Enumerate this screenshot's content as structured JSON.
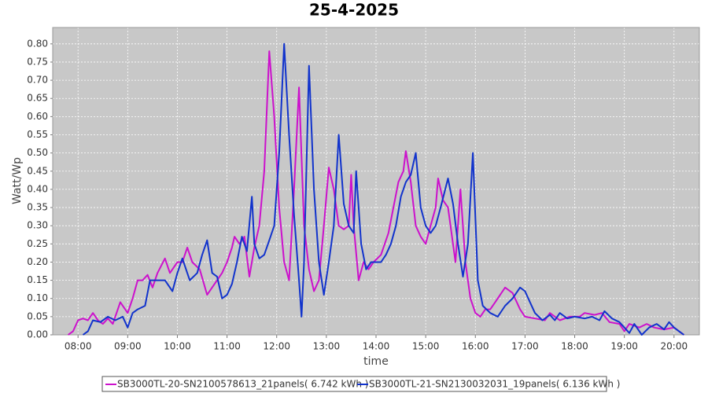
{
  "chart_data": {
    "type": "line",
    "title": "25-4-2025",
    "xlabel": "time",
    "ylabel": "Watt/Wp",
    "xlim": [
      7.49,
      20.51
    ],
    "ylim": [
      0,
      0.845
    ],
    "grid": true,
    "legend": "bottom",
    "xticks": [
      {
        "value": 8,
        "label": "08:00"
      },
      {
        "value": 9,
        "label": "09:00"
      },
      {
        "value": 10,
        "label": "10:00"
      },
      {
        "value": 11,
        "label": "11:00"
      },
      {
        "value": 12,
        "label": "12:00"
      },
      {
        "value": 13,
        "label": "13:00"
      },
      {
        "value": 14,
        "label": "14:00"
      },
      {
        "value": 15,
        "label": "15:00"
      },
      {
        "value": 16,
        "label": "16:00"
      },
      {
        "value": 17,
        "label": "17:00"
      },
      {
        "value": 18,
        "label": "18:00"
      },
      {
        "value": 19,
        "label": "19:00"
      },
      {
        "value": 20,
        "label": "20:00"
      }
    ],
    "yticks": [
      {
        "value": 0,
        "label": "0.00"
      },
      {
        "value": 0.05,
        "label": "0.05"
      },
      {
        "value": 0.1,
        "label": "0.10"
      },
      {
        "value": 0.15,
        "label": "0.15"
      },
      {
        "value": 0.2,
        "label": "0.20"
      },
      {
        "value": 0.25,
        "label": "0.25"
      },
      {
        "value": 0.3,
        "label": "0.30"
      },
      {
        "value": 0.35,
        "label": "0.35"
      },
      {
        "value": 0.4,
        "label": "0.40"
      },
      {
        "value": 0.45,
        "label": "0.45"
      },
      {
        "value": 0.5,
        "label": "0.50"
      },
      {
        "value": 0.55,
        "label": "0.55"
      },
      {
        "value": 0.6,
        "label": "0.60"
      },
      {
        "value": 0.65,
        "label": "0.65"
      },
      {
        "value": 0.7,
        "label": "0.70"
      },
      {
        "value": 0.75,
        "label": "0.75"
      },
      {
        "value": 0.8,
        "label": "0.80"
      }
    ],
    "series": [
      {
        "name": "SB3000TL-20-SN2100578613_21panels( 6.742 kWh )",
        "color": "#cc11cc",
        "x": [
          7.8,
          7.9,
          8.0,
          8.1,
          8.2,
          8.3,
          8.4,
          8.5,
          8.6,
          8.7,
          8.85,
          9.0,
          9.1,
          9.2,
          9.3,
          9.4,
          9.5,
          9.6,
          9.75,
          9.85,
          10.0,
          10.1,
          10.2,
          10.3,
          10.45,
          10.6,
          10.75,
          10.9,
          11.0,
          11.1,
          11.15,
          11.25,
          11.35,
          11.45,
          11.55,
          11.65,
          11.75,
          11.85,
          11.95,
          12.05,
          12.15,
          12.25,
          12.35,
          12.45,
          12.55,
          12.65,
          12.75,
          12.85,
          12.95,
          13.05,
          13.15,
          13.25,
          13.35,
          13.45,
          13.5,
          13.55,
          13.65,
          13.75,
          13.85,
          13.95,
          14.1,
          14.25,
          14.35,
          14.45,
          14.55,
          14.6,
          14.7,
          14.8,
          14.9,
          15.0,
          15.1,
          15.2,
          15.25,
          15.35,
          15.45,
          15.5,
          15.6,
          15.7,
          15.8,
          15.9,
          16.0,
          16.1,
          16.2,
          16.3,
          16.4,
          16.5,
          16.6,
          16.75,
          16.9,
          17.0,
          17.2,
          17.4,
          17.5,
          17.7,
          17.9,
          18.1,
          18.2,
          18.4,
          18.55,
          18.7,
          18.9,
          19.0,
          19.1,
          19.3,
          19.45,
          19.6,
          19.8,
          20.0,
          20.1,
          20.2
        ],
        "values": [
          0,
          0.01,
          0.04,
          0.045,
          0.04,
          0.06,
          0.04,
          0.03,
          0.045,
          0.03,
          0.09,
          0.06,
          0.1,
          0.15,
          0.15,
          0.165,
          0.13,
          0.17,
          0.21,
          0.17,
          0.2,
          0.2,
          0.24,
          0.2,
          0.18,
          0.11,
          0.14,
          0.17,
          0.2,
          0.24,
          0.27,
          0.25,
          0.27,
          0.16,
          0.24,
          0.3,
          0.45,
          0.78,
          0.6,
          0.35,
          0.2,
          0.15,
          0.4,
          0.68,
          0.3,
          0.18,
          0.12,
          0.15,
          0.3,
          0.46,
          0.4,
          0.3,
          0.29,
          0.3,
          0.44,
          0.3,
          0.15,
          0.2,
          0.18,
          0.2,
          0.22,
          0.28,
          0.35,
          0.42,
          0.45,
          0.505,
          0.42,
          0.3,
          0.27,
          0.25,
          0.3,
          0.35,
          0.43,
          0.37,
          0.35,
          0.3,
          0.2,
          0.4,
          0.2,
          0.1,
          0.06,
          0.05,
          0.07,
          0.07,
          0.09,
          0.11,
          0.13,
          0.115,
          0.07,
          0.05,
          0.045,
          0.04,
          0.06,
          0.04,
          0.05,
          0.05,
          0.06,
          0.055,
          0.06,
          0.035,
          0.03,
          0.01,
          0.03,
          0.02,
          0.03,
          0.02,
          0.015,
          0.02,
          0.01,
          0
        ]
      },
      {
        "name": "SB3000TL-21-SN2130032031_19panels( 6.136 kWh )",
        "color": "#1133cc",
        "x": [
          8.1,
          8.2,
          8.3,
          8.45,
          8.6,
          8.75,
          8.9,
          9.0,
          9.1,
          9.2,
          9.35,
          9.45,
          9.6,
          9.75,
          9.9,
          10.0,
          10.1,
          10.25,
          10.4,
          10.5,
          10.6,
          10.7,
          10.8,
          10.9,
          11.0,
          11.1,
          11.2,
          11.3,
          11.4,
          11.5,
          11.55,
          11.65,
          11.75,
          11.85,
          11.95,
          12.05,
          12.15,
          12.25,
          12.35,
          12.45,
          12.5,
          12.55,
          12.65,
          12.75,
          12.85,
          12.95,
          13.05,
          13.15,
          13.25,
          13.35,
          13.45,
          13.55,
          13.6,
          13.7,
          13.8,
          13.9,
          14.0,
          14.1,
          14.2,
          14.3,
          14.4,
          14.5,
          14.6,
          14.7,
          14.8,
          14.9,
          15.0,
          15.1,
          15.2,
          15.3,
          15.45,
          15.55,
          15.65,
          15.75,
          15.85,
          15.95,
          16.05,
          16.15,
          16.3,
          16.45,
          16.6,
          16.75,
          16.9,
          17.0,
          17.1,
          17.2,
          17.35,
          17.5,
          17.6,
          17.7,
          17.85,
          18.0,
          18.2,
          18.35,
          18.5,
          18.6,
          18.75,
          18.9,
          19.0,
          19.1,
          19.2,
          19.35,
          19.5,
          19.65,
          19.8,
          19.9,
          20.0,
          20.1,
          20.2
        ],
        "values": [
          0,
          0.01,
          0.04,
          0.035,
          0.05,
          0.04,
          0.05,
          0.02,
          0.06,
          0.07,
          0.08,
          0.15,
          0.15,
          0.15,
          0.12,
          0.17,
          0.21,
          0.15,
          0.17,
          0.22,
          0.26,
          0.17,
          0.16,
          0.1,
          0.11,
          0.14,
          0.2,
          0.27,
          0.23,
          0.38,
          0.25,
          0.21,
          0.22,
          0.26,
          0.3,
          0.5,
          0.8,
          0.55,
          0.33,
          0.15,
          0.05,
          0.2,
          0.74,
          0.4,
          0.2,
          0.11,
          0.2,
          0.3,
          0.55,
          0.36,
          0.3,
          0.28,
          0.45,
          0.25,
          0.18,
          0.2,
          0.2,
          0.2,
          0.22,
          0.25,
          0.3,
          0.38,
          0.42,
          0.44,
          0.5,
          0.35,
          0.3,
          0.28,
          0.3,
          0.35,
          0.43,
          0.36,
          0.25,
          0.16,
          0.25,
          0.5,
          0.15,
          0.08,
          0.06,
          0.05,
          0.08,
          0.1,
          0.13,
          0.12,
          0.09,
          0.06,
          0.04,
          0.055,
          0.04,
          0.06,
          0.045,
          0.05,
          0.045,
          0.05,
          0.04,
          0.065,
          0.045,
          0.035,
          0.02,
          0.005,
          0.03,
          0,
          0.02,
          0.03,
          0.015,
          0.035,
          0.02,
          0.01,
          0
        ]
      }
    ]
  }
}
